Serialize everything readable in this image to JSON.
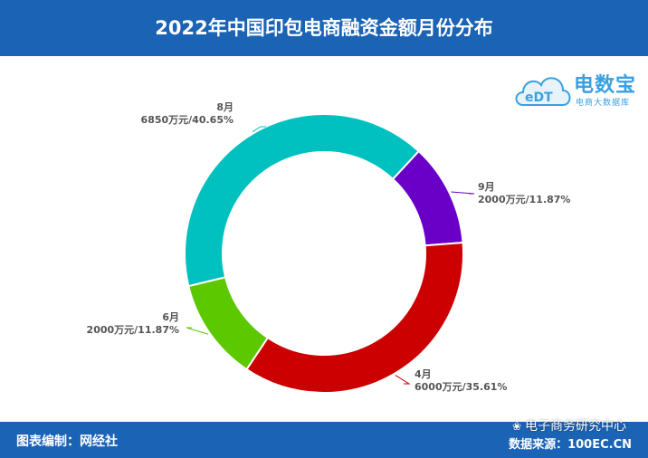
{
  "header": {
    "title": "2022年中国印包电商融资金额月份分布"
  },
  "logo": {
    "brand": "电数宝",
    "sub": "电商大数据库",
    "mark": "eDT"
  },
  "footer": {
    "left": "图表编制：网经社",
    "right": "数据来源：100EC.CN",
    "watermark": "电子商务研究中心"
  },
  "colors": {
    "header_bg": "#1b63b5",
    "aug": "#00c0c0",
    "sep": "#6a00c8",
    "apr": "#cc0000",
    "jun": "#5cc800"
  },
  "chart_data": {
    "type": "pie",
    "donut": true,
    "title": "2022年中国印包电商融资金额月份分布",
    "unit": "万元",
    "slices": [
      {
        "name": "8月",
        "value": 6850,
        "percent": 40.65,
        "label": "6850万元/40.65%",
        "color": "#00c0c0"
      },
      {
        "name": "9月",
        "value": 2000,
        "percent": 11.87,
        "label": "2000万元/11.87%",
        "color": "#6a00c8"
      },
      {
        "name": "4月",
        "value": 6000,
        "percent": 35.61,
        "label": "6000万元/35.61%",
        "color": "#cc0000"
      },
      {
        "name": "6月",
        "value": 2000,
        "percent": 11.87,
        "label": "2000万元/11.87%",
        "color": "#5cc800"
      }
    ]
  }
}
